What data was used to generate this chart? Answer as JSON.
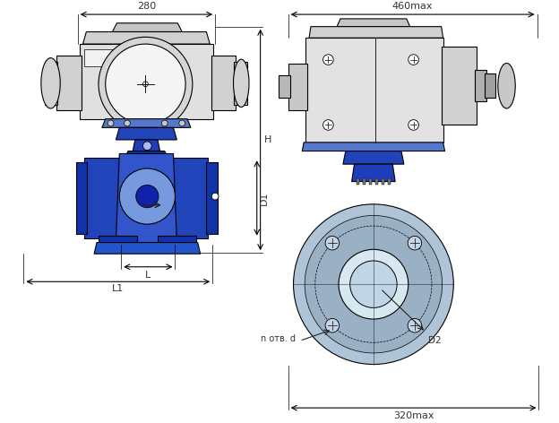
{
  "bg_color": "#ffffff",
  "line_color": "#000000",
  "dim_color": "#333333",
  "dim_280": "280",
  "dim_460max": "460max",
  "dim_H": "H",
  "dim_D1": "D1",
  "dim_L": "L",
  "dim_L1": "L1",
  "dim_320max": "320max",
  "dim_D2": "D2",
  "dim_n_otv_d": "n отв. d"
}
